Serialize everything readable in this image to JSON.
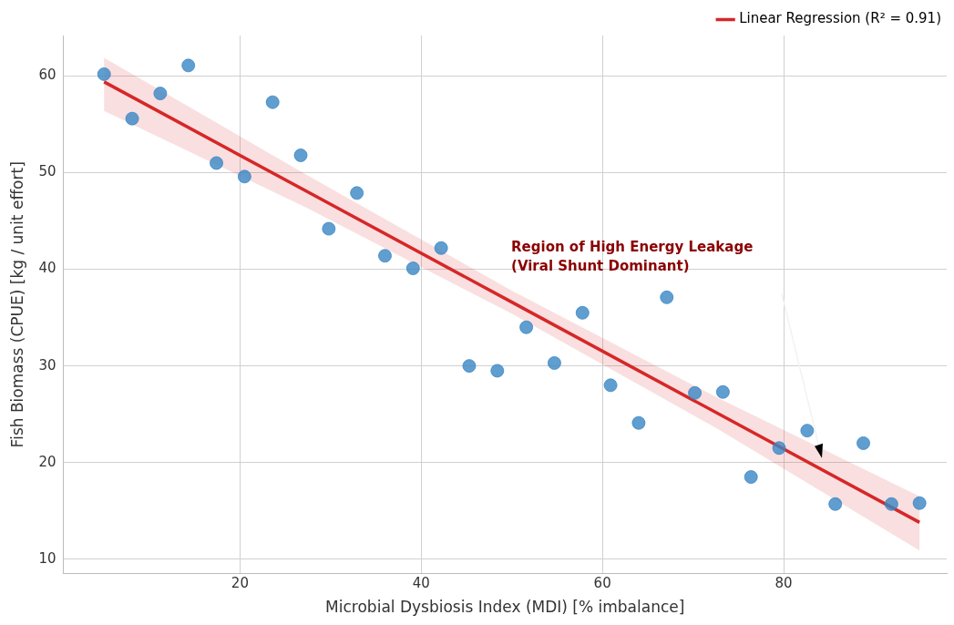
{
  "chart_data": {
    "type": "scatter",
    "xlabel": "Microbial Dysbiosis Index (MDI) [% imbalance]",
    "ylabel": "Fish Biomass (CPUE) [kg / unit effort]",
    "xlim": [
      0.5,
      98
    ],
    "xticks": [
      20,
      40,
      60,
      80
    ],
    "ylim": [
      8.5,
      64.2
    ],
    "yticks": [
      10,
      20,
      30,
      40,
      50,
      60
    ],
    "grid": true,
    "legend": "top right",
    "marker": "circle",
    "series": [
      {
        "color": "#3a86c4",
        "x": [
          5.0,
          8.1,
          11.2,
          14.3,
          17.4,
          20.5,
          23.6,
          26.7,
          29.8,
          32.9,
          36.0,
          39.1,
          42.2,
          45.3,
          48.4,
          51.6,
          54.7,
          57.8,
          60.9,
          64.0,
          67.1,
          70.2,
          73.3,
          76.4,
          79.5,
          82.6,
          85.7,
          88.8,
          91.9,
          95.0
        ],
        "values": [
          60.2,
          55.6,
          58.2,
          61.1,
          51.0,
          49.6,
          57.3,
          51.8,
          44.2,
          47.9,
          41.4,
          40.1,
          42.2,
          30.0,
          29.5,
          34.0,
          30.3,
          35.5,
          28.0,
          24.1,
          37.1,
          27.2,
          27.3,
          18.5,
          21.5,
          23.3,
          15.7,
          22.0,
          15.7,
          15.8
        ]
      },
      {
        "type": "line",
        "name": "Linear Regression (R² = 0.91)",
        "color": "#d62728",
        "marker": "none",
        "x": [
          5,
          27.5,
          50,
          72.5,
          95
        ],
        "values": [
          59.4,
          48.0,
          36.6,
          25.2,
          13.8
        ],
        "lower": [
          56.4,
          46.3,
          35.4,
          23.6,
          10.9
        ],
        "upper": [
          61.9,
          49.7,
          37.8,
          26.8,
          16.5
        ]
      }
    ],
    "annotations": [
      "Region of High Energy Leakage\n(Viral Shunt Dominant)"
    ]
  }
}
